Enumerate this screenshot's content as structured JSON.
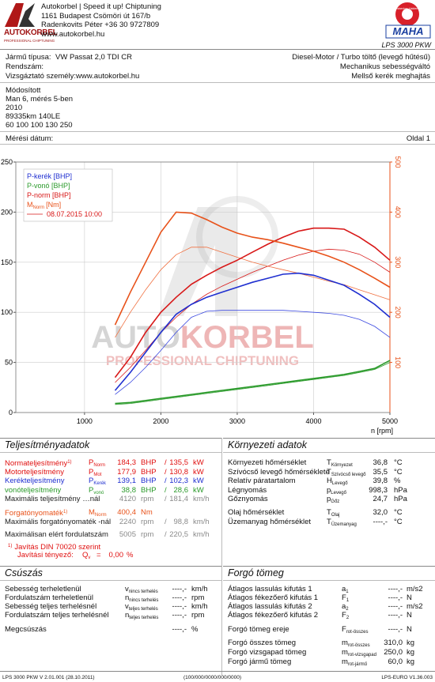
{
  "header": {
    "company": [
      "Autokorbel | Speed it up! Chiptuning",
      "1161 Budapest Csömöri út 167/b",
      "Radenkovits Péter +36 30 9727809",
      "www.autokorbel.hu"
    ],
    "logo": "AUTOKORBEL",
    "logo_sub": "PROFESSIONAL CHIPTUNING",
    "maha": "MAHA",
    "maha_ring": "Maschinenbau Haldenwang",
    "model": "LPS 3000 PKW"
  },
  "vehicle": {
    "left": [
      [
        "Jármű típusa:",
        "VW Passat 2,0 TDI CR"
      ],
      [
        "Rendszám:"
      ],
      [
        "Vizsgáztató személy:www.autokorbel.hu"
      ]
    ],
    "right": [
      "Diesel-Motor / Turbo töltő (levegő hűtésű)",
      "Mechanikus sebességváltó",
      "Mellső kerék meghajtás"
    ],
    "notes": [
      "Módosított",
      "Man 6, mérés 5-ben",
      "2010",
      "89335km 140LE",
      "60 100 100 130 250"
    ],
    "date_label": "Mérési dátum:",
    "page": "Oldal 1"
  },
  "watermark": {
    "brand": [
      "AUTO",
      "KORBEL"
    ],
    "tagline": "PROFESSIONAL CHIPTUNING"
  },
  "chart_data": {
    "type": "line",
    "x_label": "n [rpm]",
    "xlim": [
      100,
      5000
    ],
    "xticks": [
      1000,
      2000,
      3000,
      4000,
      5000
    ],
    "ylim": [
      0,
      250
    ],
    "yticks": [
      0,
      50,
      100,
      150,
      200,
      250
    ],
    "y2lim": [
      0,
      500
    ],
    "y2ticks": [
      100,
      200,
      300,
      400,
      500
    ],
    "grid": true,
    "x": [
      1400,
      1600,
      1800,
      2000,
      2200,
      2400,
      2600,
      2800,
      3000,
      3200,
      3400,
      3600,
      3800,
      4000,
      4200,
      4400,
      4600,
      4800,
      5000
    ],
    "series": [
      {
        "name": "P-kerék [BHP]",
        "color": "#1f2fd0",
        "values": [
          22,
          40,
          60,
          80,
          98,
          108,
          115,
          120,
          125,
          130,
          134,
          138,
          139,
          137,
          132,
          127,
          118,
          108,
          95
        ]
      },
      {
        "name": "P-vonó [BHP]",
        "color": "#2a9a2a",
        "values": [
          9,
          10,
          12,
          14,
          16,
          18,
          20,
          22,
          24,
          26,
          28,
          30,
          32,
          34,
          36,
          38,
          41,
          44,
          52
        ]
      },
      {
        "name": "P-norm [BHP]",
        "color": "#d81818",
        "values": [
          35,
          55,
          80,
          100,
          115,
          128,
          137,
          145,
          152,
          160,
          168,
          175,
          181,
          184,
          184,
          183,
          175,
          165,
          152
        ]
      },
      {
        "name": "M",
        "sub": "Norm",
        "unit": "[Nm]",
        "color": "#e8521a",
        "axis": "y2",
        "values": [
          175,
          240,
          300,
          360,
          400,
          398,
          385,
          370,
          358,
          350,
          345,
          338,
          330,
          322,
          312,
          300,
          285,
          268,
          250
        ]
      }
    ],
    "comparison": {
      "label": "08.07.2015 10:00",
      "color": "#d81818",
      "series": [
        {
          "color": "#3a48e0",
          "values": [
            18,
            30,
            45,
            62,
            80,
            95,
            101,
            102,
            102,
            102,
            102,
            102,
            101,
            100,
            99,
            97,
            93,
            86,
            75
          ]
        },
        {
          "color": "#2a9a2a",
          "values": [
            8,
            9,
            11,
            13,
            15,
            17,
            19,
            21,
            23,
            25,
            27,
            29,
            31,
            33,
            35,
            37,
            40,
            43,
            50
          ]
        },
        {
          "color": "#d81818",
          "values": [
            30,
            45,
            62,
            80,
            95,
            108,
            118,
            126,
            133,
            140,
            146,
            152,
            157,
            161,
            163,
            162,
            158,
            150,
            140
          ]
        },
        {
          "color": "#f07040",
          "axis": "y2",
          "values": [
            150,
            200,
            245,
            285,
            315,
            330,
            330,
            320,
            310,
            300,
            292,
            285,
            278,
            270,
            262,
            255,
            245,
            235,
            225
          ]
        }
      ]
    }
  },
  "performance": {
    "title": "Teljesítményadatok",
    "rows": [
      {
        "label": "Normateljesítmény",
        "mark": "1)",
        "sym": "P",
        "sub": "Norm",
        "value": "184,3",
        "unit": "BHP",
        "sep": "/",
        "value2": "135,5",
        "unit2": "kW",
        "color": "#e01010"
      },
      {
        "label": "Motorteljesítmény",
        "sym": "P",
        "sub": "Mot",
        "value": "177,9",
        "unit": "BHP",
        "sep": "/",
        "value2": "130,8",
        "unit2": "kW",
        "color": "#e01010"
      },
      {
        "label": "Kerékteljesítmény",
        "sym": "P",
        "sub": "Kerék",
        "value": "139,1",
        "unit": "BHP",
        "sep": "/",
        "value2": "102,3",
        "unit2": "kW",
        "color": "#1f2fd0"
      },
      {
        "label": "vonóteljesítmény",
        "sym": "P",
        "sub": "vonó",
        "value": "38,8",
        "unit": "BHP",
        "sep": "/",
        "value2": "28,6",
        "unit2": "kW",
        "color": "#2a9a2a"
      },
      {
        "label": "Maximális teljesítmény …nál",
        "value": "4120",
        "unit": "rpm",
        "sep": "/",
        "value2": "181,4",
        "unit2": "km/h",
        "color": "#222222",
        "vcolor": "#8a8a8a"
      },
      {
        "label": "Forgatónyomaték",
        "mark": "1)",
        "sym": "M",
        "sub": "Norm",
        "value": "400,4",
        "unit": "Nm",
        "color": "#e8521a"
      },
      {
        "label": "Maximális forgatónyomaték -nál",
        "value": "2240",
        "unit": "rpm",
        "sep": "/",
        "value2": "98,8",
        "unit2": "km/h",
        "color": "#222222",
        "vcolor": "#8a8a8a"
      },
      {
        "label": "Maximálisan elért fordulatszám",
        "value": "5005",
        "unit": "rpm",
        "sep": "/",
        "value2": "220,5",
        "unit2": "km/h",
        "color": "#222222",
        "vcolor": "#8a8a8a"
      }
    ],
    "note": {
      "marker": "1)",
      "text": "Javítás DIN 70020 szerint"
    },
    "factor": {
      "text": "Javítási tényező:",
      "sym": "Q",
      "sub": "v",
      "eq": "=",
      "value": "0,00",
      "unit": "%"
    }
  },
  "environment": {
    "title": "Környezeti adatok",
    "rows": [
      {
        "label": "Környezeti hőmérséklet",
        "sym": "T",
        "sub": "Környezet",
        "value": "36,8",
        "unit": "°C"
      },
      {
        "label": "Szívócső levegő hőmérséklete",
        "sym": "T",
        "sub": "Szívócső levegő",
        "value": "35,5",
        "unit": "°C"
      },
      {
        "label": "Relatív páratartalom",
        "sym": "H",
        "sub": "Levegő",
        "value": "39,8",
        "unit": "%"
      },
      {
        "label": "Légnyomás",
        "sym": "p",
        "sub": "Levegő",
        "value": "998,3",
        "unit": "hPa"
      },
      {
        "label": "Gőznyomás",
        "sym": "p",
        "sub": "Gőz",
        "value": "24,7",
        "unit": "hPa"
      },
      {
        "label": "Olaj hőmérséklet",
        "sym": "T",
        "sub": "Olaj",
        "value": "32,0",
        "unit": "°C"
      },
      {
        "label": "Üzemanyag hőmérséklet",
        "sym": "T",
        "sub": "Üzemanyag",
        "value": "----,-",
        "unit": "°C"
      }
    ]
  },
  "slip": {
    "title": "Csúszás",
    "rows": [
      {
        "label": "Sebesség terheletlenül",
        "sym": "v",
        "sub": "nincs terhelés",
        "value": "----,-",
        "unit": "km/h"
      },
      {
        "label": "Fordulatszám terheletlenül",
        "sym": "n",
        "sub": "nincs terhelés",
        "value": "----,-",
        "unit": "rpm"
      },
      {
        "label": "Sebesség teljes terhelésnél",
        "sym": "v",
        "sub": "teljes terhelés",
        "value": "----,-",
        "unit": "km/h"
      },
      {
        "label": "Fordulatszám teljes terhelésnél",
        "sym": "n",
        "sub": "teljes terhelés",
        "value": "----,-",
        "unit": "rpm"
      },
      {
        "label": "Megcsúszás",
        "value": "----,-",
        "unit": "%"
      }
    ]
  },
  "inertia": {
    "title": "Forgó tömeg",
    "rows": [
      {
        "label": "Átlagos lassulás kifutás 1",
        "sym": "a",
        "sub": "1",
        "value": "----,-",
        "unit": "m/s2"
      },
      {
        "label": "Átlagos fékezőerő kifutás 1",
        "sym": "F",
        "sub": "1",
        "value": "----,-",
        "unit": "N"
      },
      {
        "label": "Átlagos lassulás kifutás 2",
        "sym": "a",
        "sub": "2",
        "value": "----,-",
        "unit": "m/s2"
      },
      {
        "label": "Átlagos fékezőerő kifutás 2",
        "sym": "F",
        "sub": "2",
        "value": "----,-",
        "unit": "N"
      },
      {
        "label": "Forgó tömeg ereje",
        "sym": "F",
        "sub": "rot-összes",
        "value": "----,-",
        "unit": "N"
      },
      {
        "label": "Forgó összes tömeg",
        "sym": "m",
        "sub": "rot-összes",
        "value": "310,0",
        "unit": "kg"
      },
      {
        "label": "Forgó vizsgapad tömeg",
        "sym": "m",
        "sub": "rot-vizsgapad",
        "value": "250,0",
        "unit": "kg"
      },
      {
        "label": "Forgó jármű tömeg",
        "sym": "m",
        "sub": "rot-jármű",
        "value": "60,0",
        "unit": "kg"
      }
    ]
  },
  "footer": [
    "LPS 3000 PKW V 2.01.001 (28.10.2011)",
    "(100/000/0000/000/0000)",
    "LPS-EURO V1.36.003"
  ]
}
